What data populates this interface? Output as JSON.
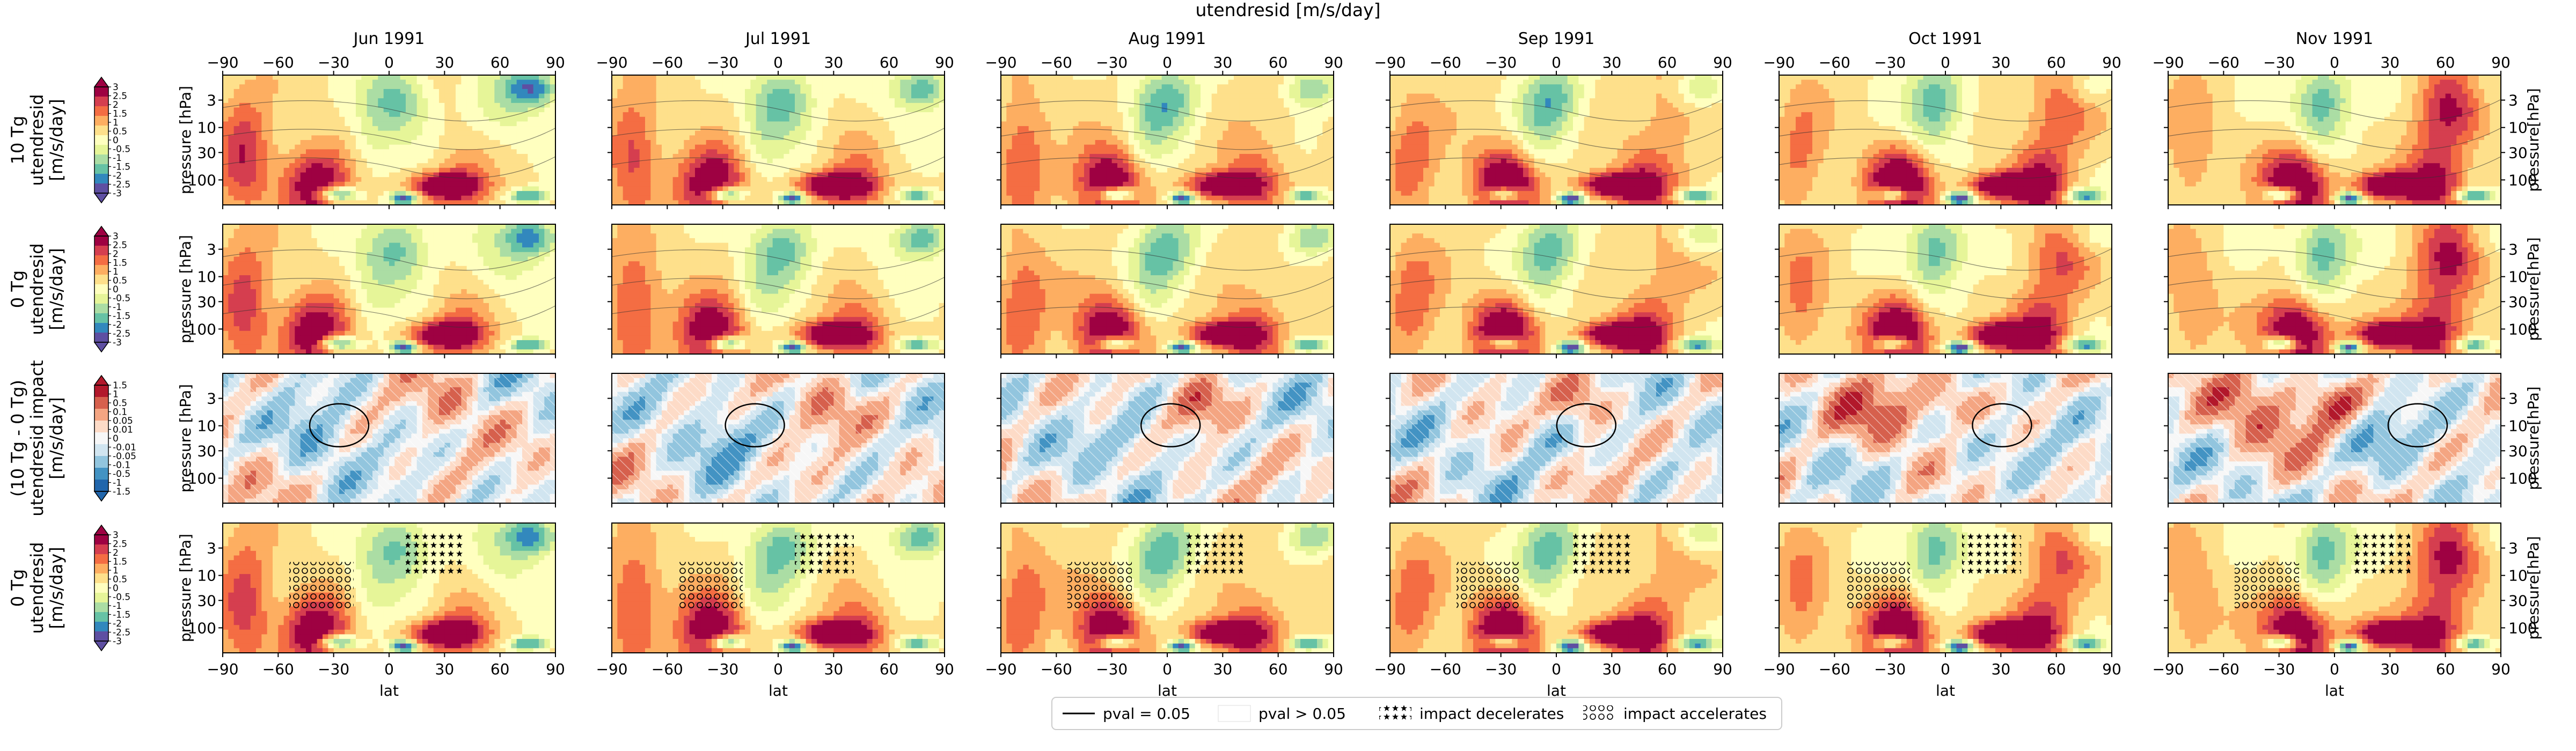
{
  "figure": {
    "suptitle": "utendresid [m/s/day]"
  },
  "columns": [
    "Jun 1991",
    "Jul 1991",
    "Aug 1991",
    "Sep 1991",
    "Oct 1991",
    "Nov 1991"
  ],
  "rows": [
    {
      "label_lines": [
        "10 Tg",
        "utendresid",
        "[m/s/day]"
      ],
      "kind": "main",
      "cbar_ticks": [
        "3",
        "2.5",
        "2",
        "1.5",
        "1",
        "0.5",
        "0",
        "-0.5",
        "-1",
        "-1.5",
        "-2",
        "-2.5",
        "-3"
      ]
    },
    {
      "label_lines": [
        "0 Tg",
        "utendresid",
        "[m/s/day]"
      ],
      "kind": "main",
      "cbar_ticks": [
        "3",
        "2.5",
        "2",
        "1.5",
        "1",
        "0.5",
        "0",
        "-0.5",
        "-1",
        "-1.5",
        "-2",
        "-2.5",
        "-3"
      ]
    },
    {
      "label_lines": [
        "(10 Tg - 0 Tg)",
        "utendresid impact",
        "[m/s/day]"
      ],
      "kind": "diff",
      "cbar_ticks": [
        "1.5",
        "1",
        "0.5",
        "0.1",
        "0.05",
        "0.01",
        "0",
        "-0.01",
        "-0.05",
        "-0.1",
        "-0.5",
        "-1",
        "-1.5"
      ]
    },
    {
      "label_lines": [
        "0 Tg",
        "utendresid",
        "[m/s/day]"
      ],
      "kind": "sig",
      "cbar_ticks": [
        "3",
        "2.5",
        "2",
        "1.5",
        "1",
        "0.5",
        "0",
        "-0.5",
        "-1",
        "-1.5",
        "-2",
        "-2.5",
        "-3"
      ]
    }
  ],
  "axes": {
    "x_ticks": [
      "−90",
      "−60",
      "−30",
      "0",
      "30",
      "60",
      "90"
    ],
    "xlabel": "lat",
    "y_ticks": [
      "3",
      "10",
      "30",
      "100"
    ],
    "ylabel_left": "pressure [hPa]",
    "ylabel_right": "pressure[hPa]"
  },
  "legend": {
    "items": [
      "pval = 0.05",
      "pval > 0.05",
      "impact decelerates",
      "impact accelerates"
    ]
  },
  "chart_data": {
    "type": "heatmap",
    "title": "utendresid [m/s/day]",
    "xlabel": "lat",
    "ylabel": "pressure [hPa]",
    "x_range": [
      -90,
      90
    ],
    "x_ticks": [
      -90,
      -60,
      -30,
      0,
      30,
      60,
      90
    ],
    "y_range": [
      1,
      300
    ],
    "y_ticks": [
      3,
      10,
      30,
      100
    ],
    "y_scale": "log",
    "y_inverted": true,
    "panels_layout": {
      "rows": 4,
      "columns": 6
    },
    "main_colorbar": {
      "ticks": [
        -3,
        -2.5,
        -2,
        -1.5,
        -1,
        -0.5,
        0,
        0.5,
        1,
        1.5,
        2,
        2.5,
        3
      ],
      "colormap": "Spectral_r"
    },
    "diff_colorbar": {
      "ticks": [
        -1.5,
        -1,
        -0.5,
        -0.1,
        -0.05,
        -0.01,
        0,
        0.01,
        0.05,
        0.1,
        0.5,
        1,
        1.5
      ],
      "colormap": "RdBu_r"
    },
    "legend_placement": "bottom-center",
    "colors": {
      "spectral": [
        "#5e4fa2",
        "#3288bd",
        "#66c2a5",
        "#abdda4",
        "#e6f598",
        "#ffffbf",
        "#fee08b",
        "#fdae61",
        "#f46d43",
        "#d53e4f",
        "#9e0142"
      ],
      "rdbu": [
        "#2166ac",
        "#4393c3",
        "#92c5de",
        "#d1e5f0",
        "#f7f7f7",
        "#fddbc7",
        "#f4a582",
        "#d6604d",
        "#b2182b"
      ]
    }
  }
}
